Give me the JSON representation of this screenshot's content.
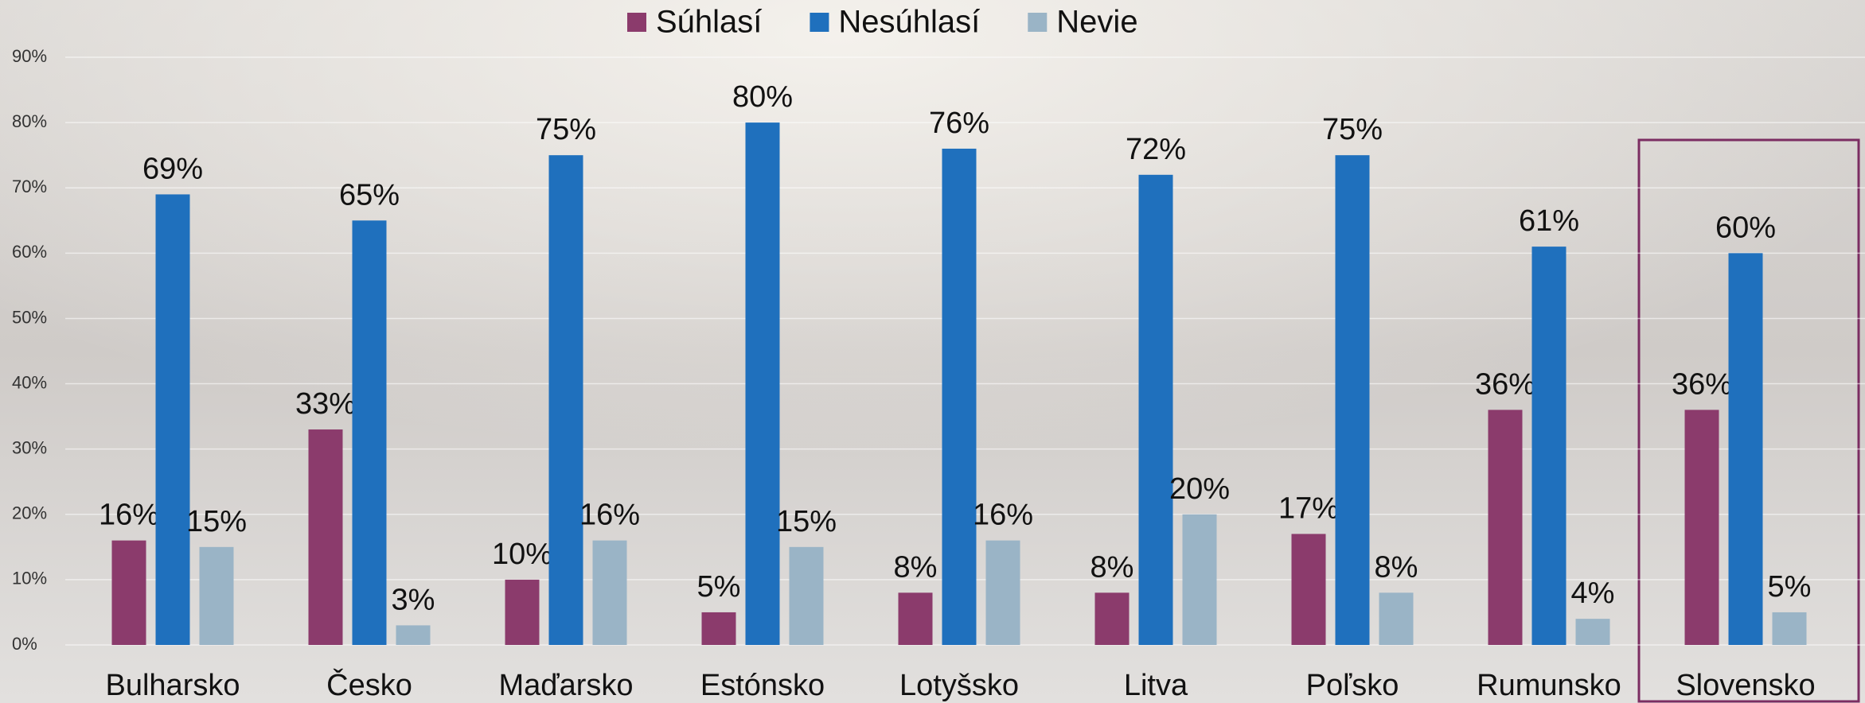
{
  "chart_data": {
    "type": "bar",
    "categories": [
      "Bulharsko",
      "Česko",
      "Maďarsko",
      "Estónsko",
      "Lotyšsko",
      "Litva",
      "Poľsko",
      "Rumunsko",
      "Slovensko"
    ],
    "series": [
      {
        "name": "Súhlasí",
        "color": "#8b3b6c",
        "values": [
          16,
          33,
          10,
          5,
          8,
          8,
          17,
          36,
          36
        ],
        "value_labels": [
          "16%",
          "33%",
          "10%",
          "5%",
          "8%",
          "8%",
          "17%",
          "36%",
          "36%"
        ]
      },
      {
        "name": "Nesúhlasí",
        "color": "#1f70bd",
        "values": [
          69,
          65,
          75,
          80,
          76,
          72,
          75,
          61,
          60
        ],
        "value_labels": [
          "69%",
          "65%",
          "75%",
          "80%",
          "76%",
          "72%",
          "75%",
          "61%",
          "60%"
        ]
      },
      {
        "name": "Nevie",
        "color": "#9ab4c6",
        "values": [
          15,
          3,
          16,
          15,
          16,
          20,
          8,
          4,
          5
        ],
        "value_labels": [
          "15%",
          "3%",
          "16%",
          "15%",
          "16%",
          "20%",
          "8%",
          "4%",
          "5%"
        ]
      }
    ],
    "ylim": [
      0,
      90
    ],
    "yticks": [
      {
        "value": 0,
        "label": "0%"
      },
      {
        "value": 10,
        "label": "10%"
      },
      {
        "value": 20,
        "label": "20%"
      },
      {
        "value": 30,
        "label": "30%"
      },
      {
        "value": 40,
        "label": "40%"
      },
      {
        "value": 50,
        "label": "50%"
      },
      {
        "value": 60,
        "label": "60%"
      },
      {
        "value": 70,
        "label": "70%"
      },
      {
        "value": 80,
        "label": "80%"
      },
      {
        "value": 90,
        "label": "90%"
      }
    ],
    "grid": true
  }
}
